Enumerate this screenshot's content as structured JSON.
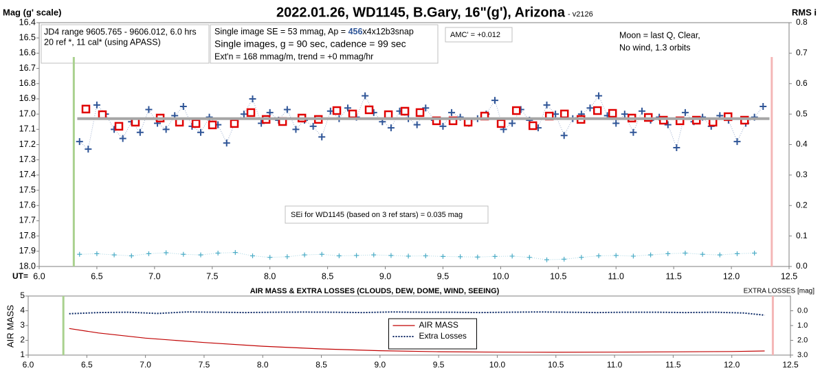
{
  "chart_data": [
    {
      "type": "scatter",
      "title": "2022.01.26, WD1145, B.Gary, 16\"(g'), Arizona",
      "subtitle": "- v2126",
      "ylabel": "Mag (g' scale)",
      "y2label": "RMS i",
      "xlabel": "UT=",
      "annotations": [
        "JD4 range 9605.765 - 9606.012, 6.0 hrs",
        "20 ref *, 11 cal* (using APASS)",
        "Single image SE = 53 mmag, Ap = ",
        "456",
        "x4x12b3snap",
        "Single images, g = 90 sec, cadence = 99 sec",
        "Ext'n = 168 mmag/m, trend = +0 mmag/hr",
        "AMC' = +0.012",
        "Moon = last Q, Clear,",
        "No wind, 1.3 orbits",
        "SEi for WD1145 (based on 3 ref stars) = 0.035 mag"
      ],
      "xlim": [
        6.0,
        12.5
      ],
      "xticks": [
        {
          "value": 6,
          "label": "6.0"
        },
        6.5,
        {
          "value": 7,
          "label": "7.0"
        },
        7.5,
        {
          "value": 8,
          "label": "8.0"
        },
        8.5,
        {
          "value": 9,
          "label": "9.0"
        },
        9.5,
        {
          "value": 10,
          "label": "10.0"
        },
        10.5,
        {
          "value": 11,
          "label": "11.0"
        },
        11.5,
        {
          "value": 12,
          "label": "12.0"
        },
        12.5
      ],
      "ylim": [
        18.0,
        16.4
      ],
      "yticks": [
        16.4,
        16.5,
        16.6,
        16.7,
        16.8,
        16.9,
        {
          "value": 17,
          "label": "17.0"
        },
        17.1,
        17.2,
        17.3,
        17.4,
        17.5,
        17.6,
        17.7,
        17.8,
        17.9,
        {
          "value": 18,
          "label": "18.0"
        }
      ],
      "y2lim": [
        0,
        0.8
      ],
      "y2ticks": [
        {
          "value": 0,
          "label": "0.0"
        },
        0.1,
        0.2,
        0.3,
        0.4,
        0.5,
        0.6,
        0.7,
        0.8
      ],
      "grid": false,
      "vlines": [
        {
          "x": 6.3,
          "color": "#a9d18e"
        },
        {
          "x": 12.35,
          "color": "#f4b6b6"
        }
      ],
      "series": [
        {
          "color": "#2f5597",
          "marker": "plus",
          "line": "dotted",
          "x": [
            6.35,
            6.425,
            6.5,
            6.575,
            6.65,
            6.725,
            6.8,
            6.875,
            6.95,
            7.025,
            7.1,
            7.175,
            7.25,
            7.325,
            7.4,
            7.475,
            7.55,
            7.625,
            7.7,
            7.775,
            7.85,
            7.925,
            8.0,
            8.075,
            8.15,
            8.225,
            8.3,
            8.375,
            8.45,
            8.525,
            8.6,
            8.675,
            8.75,
            8.825,
            8.9,
            8.975,
            9.05,
            9.125,
            9.2,
            9.275,
            9.35,
            9.425,
            9.5,
            9.575,
            9.65,
            9.725,
            9.8,
            9.875,
            9.95,
            10.025,
            10.1,
            10.175,
            10.25,
            10.325,
            10.4,
            10.475,
            10.55,
            10.625,
            10.7,
            10.775,
            10.85,
            10.925,
            11.0,
            11.075,
            11.15,
            11.225,
            11.3,
            11.375,
            11.45,
            11.525,
            11.6,
            11.675,
            11.75,
            11.825,
            11.9,
            11.975,
            12.05,
            12.125,
            12.2,
            12.275
          ],
          "values": [
            17.18,
            17.23,
            16.94,
            17.0,
            17.1,
            17.16,
            17.05,
            17.12,
            16.97,
            17.06,
            17.1,
            17.01,
            16.95,
            17.08,
            17.12,
            17.02,
            17.07,
            17.19,
            17.05,
            17.0,
            16.9,
            17.06,
            16.99,
            17.04,
            16.97,
            17.1,
            17.04,
            17.08,
            17.15,
            16.98,
            17.03,
            16.96,
            17.02,
            16.88,
            16.99,
            17.05,
            17.09,
            16.98,
            17.03,
            17.07,
            16.96,
            17.04,
            17.08,
            16.99,
            17.02,
            17.06,
            17.03,
            17.0,
            16.91,
            17.1,
            17.06,
            16.97,
            17.04,
            17.09,
            16.94,
            17.0,
            17.14,
            17.03,
            17.0,
            16.96,
            16.88,
            17.01,
            17.06,
            17.0,
            17.12,
            16.98,
            17.04,
            17.02,
            17.07,
            17.22,
            16.99,
            17.05,
            17.02,
            17.08,
            17.01,
            17.04,
            17.18,
            17.06,
            17.02,
            16.95
          ]
        },
        {
          "color": "#e00000",
          "marker": "square",
          "x": [
            6.405,
            6.548,
            6.691,
            6.834,
            7.049,
            7.216,
            7.359,
            7.502,
            7.692,
            7.835,
            7.967,
            8.11,
            8.277,
            8.42,
            8.58,
            8.717,
            8.86,
            9.027,
            9.17,
            9.301,
            9.444,
            9.587,
            9.718,
            9.861,
            10.004,
            10.136,
            10.279,
            10.422,
            10.553,
            10.696,
            10.839,
            10.97,
            11.137,
            11.28,
            11.411,
            11.554,
            11.697,
            11.84,
            11.971,
            12.114
          ],
          "values": [
            16.967,
            17.004,
            17.08,
            17.053,
            17.026,
            17.053,
            17.062,
            17.071,
            17.062,
            16.99,
            17.035,
            17.049,
            17.026,
            17.035,
            16.977,
            16.999,
            16.972,
            17.004,
            16.981,
            16.99,
            17.044,
            17.044,
            17.053,
            17.013,
            17.062,
            16.977,
            17.076,
            17.013,
            16.999,
            17.035,
            16.977,
            16.995,
            17.026,
            17.022,
            17.04,
            17.044,
            17.04,
            17.053,
            17.017,
            17.04
          ]
        },
        {
          "color": "#a6a6a6",
          "line": "thick",
          "x": [
            6.33,
            12.33
          ],
          "values": [
            17.03,
            17.03
          ]
        },
        {
          "color": "#4bacc6",
          "marker": "smallplus",
          "line": "dotted",
          "axis": "y2",
          "x": [
            6.35,
            6.5,
            6.65,
            6.8,
            6.95,
            7.1,
            7.25,
            7.4,
            7.55,
            7.7,
            7.85,
            8.0,
            8.15,
            8.3,
            8.45,
            8.6,
            8.75,
            8.9,
            9.05,
            9.2,
            9.35,
            9.5,
            9.65,
            9.8,
            9.95,
            10.1,
            10.25,
            10.4,
            10.55,
            10.7,
            10.85,
            11.0,
            11.15,
            11.3,
            11.45,
            11.6,
            11.75,
            11.9,
            12.05,
            12.2
          ],
          "values": [
            0.04,
            0.042,
            0.038,
            0.035,
            0.042,
            0.045,
            0.04,
            0.038,
            0.044,
            0.046,
            0.035,
            0.03,
            0.032,
            0.038,
            0.04,
            0.035,
            0.036,
            0.038,
            0.036,
            0.034,
            0.035,
            0.033,
            0.032,
            0.031,
            0.033,
            0.034,
            0.03,
            0.022,
            0.024,
            0.03,
            0.035,
            0.036,
            0.034,
            0.038,
            0.042,
            0.044,
            0.04,
            0.038,
            0.042,
            0.044
          ]
        }
      ]
    },
    {
      "type": "line",
      "title": "AIR MASS & EXTRA LOSSES (CLOUDS, DEW, DOME, WIND, SEEING)",
      "ylabel": "AIR MASS",
      "y2label": "EXTRA LOSSES [mag]",
      "xlim": [
        6.0,
        12.5
      ],
      "xticks": [
        {
          "value": 6,
          "label": "6.0"
        },
        6.5,
        {
          "value": 7,
          "label": "7.0"
        },
        7.5,
        {
          "value": 8,
          "label": "8.0"
        },
        8.5,
        {
          "value": 9,
          "label": "9.0"
        },
        9.5,
        {
          "value": 10,
          "label": "10.0"
        },
        10.5,
        {
          "value": 11,
          "label": "11.0"
        },
        11.5,
        {
          "value": 12,
          "label": "12.0"
        },
        12.5
      ],
      "ylim": [
        1,
        5
      ],
      "yticks": [
        1,
        2,
        3,
        4,
        5
      ],
      "y2lim": [
        3.0,
        -1.0
      ],
      "y2ticks": [
        {
          "value": 0,
          "label": "0.0"
        },
        {
          "value": 1,
          "label": "1.0"
        },
        {
          "value": 2,
          "label": "2.0"
        },
        {
          "value": 3,
          "label": "3.0"
        }
      ],
      "legend": "center",
      "vlines": [
        {
          "x": 6.3,
          "color": "#a9d18e"
        },
        {
          "x": 12.35,
          "color": "#f4b6b6"
        }
      ],
      "series": [
        {
          "name": "AIR MASS",
          "color": "#c00000",
          "line": "solid",
          "x": [
            6.35,
            6.6,
            7.0,
            7.5,
            8.0,
            8.5,
            9.0,
            9.5,
            10.0,
            10.5,
            11.0,
            11.5,
            12.0,
            12.28
          ],
          "values": [
            2.8,
            2.5,
            2.15,
            1.85,
            1.6,
            1.42,
            1.3,
            1.23,
            1.2,
            1.19,
            1.2,
            1.22,
            1.24,
            1.28
          ]
        },
        {
          "name": "Extra Losses",
          "color": "#002060",
          "line": "dotted",
          "axis": "y2",
          "x": [
            6.35,
            6.6,
            6.85,
            7.1,
            7.35,
            7.6,
            7.85,
            8.1,
            8.35,
            8.6,
            8.85,
            9.1,
            9.35,
            9.6,
            9.85,
            10.1,
            10.35,
            10.6,
            10.85,
            11.1,
            11.35,
            11.6,
            11.85,
            12.1,
            12.28
          ],
          "values": [
            0.2,
            0.12,
            0.1,
            0.18,
            0.08,
            0.1,
            0.12,
            0.1,
            0.09,
            0.1,
            0.12,
            0.08,
            0.1,
            0.1,
            0.12,
            0.1,
            0.08,
            0.1,
            0.12,
            0.1,
            0.1,
            0.12,
            0.1,
            0.15,
            0.3
          ]
        }
      ]
    }
  ]
}
